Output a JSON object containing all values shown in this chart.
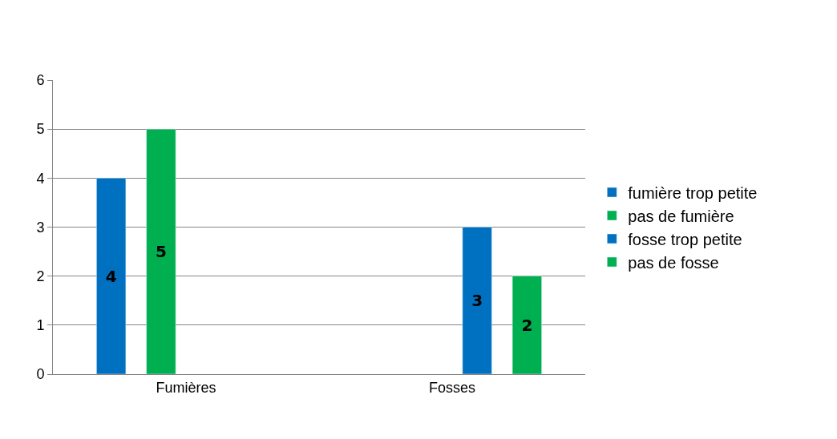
{
  "chart_data": {
    "type": "bar",
    "categories": [
      "Fumières",
      "Fosses"
    ],
    "series": [
      {
        "name": "fumière trop petite",
        "color": "#0070c0",
        "values": [
          4,
          null
        ]
      },
      {
        "name": "pas de fumière",
        "color": "#00b050",
        "values": [
          5,
          null
        ]
      },
      {
        "name": "fosse trop petite",
        "color": "#0070c0",
        "values": [
          null,
          3
        ]
      },
      {
        "name": "pas de fosse",
        "color": "#00b050",
        "values": [
          null,
          2
        ]
      }
    ],
    "ylim": [
      0,
      6
    ],
    "yticks": [
      0,
      1,
      2,
      3,
      4,
      5,
      6
    ],
    "grid": "y",
    "legend": "right",
    "data_labels": true
  }
}
